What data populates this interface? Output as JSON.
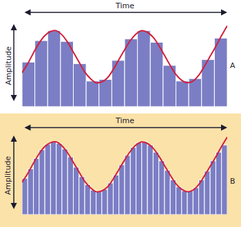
{
  "chart_data": [
    {
      "type": "bar",
      "title": "A",
      "x_label": "Time",
      "y_label": "Amplitude",
      "xlim": [
        0,
        36
      ],
      "ylim": [
        0,
        100
      ],
      "grid": false,
      "tick_labels": false,
      "series": [
        {
          "type": "bar",
          "color": "#7b7ec4",
          "x": [
            1.125,
            3.375,
            5.625,
            7.875,
            10.125,
            12.375,
            14.625,
            16.875,
            19.125,
            21.375,
            23.625,
            25.875,
            28.125,
            30.375,
            32.625,
            34.875
          ],
          "values": [
            54,
            80,
            92,
            79,
            52,
            31,
            33,
            56,
            82,
            92,
            78,
            50,
            31,
            34,
            57,
            83
          ]
        },
        {
          "type": "line",
          "color": "#d11f3a",
          "x": [
            0,
            1,
            2,
            3,
            4,
            5,
            6,
            7,
            8,
            9,
            10,
            11,
            12,
            13,
            14,
            15,
            16,
            17,
            18,
            19,
            20,
            21,
            22,
            23,
            24,
            25,
            26,
            27,
            28,
            29,
            30,
            31,
            32,
            33,
            34,
            35,
            36
          ],
          "values": [
            41,
            52,
            65,
            77,
            86,
            91,
            92,
            87,
            78,
            66,
            54,
            42,
            34,
            29,
            30,
            35,
            45,
            57,
            69,
            80,
            88,
            92,
            90,
            84,
            74,
            62,
            50,
            39,
            32,
            29,
            31,
            38,
            49,
            61,
            73,
            86,
            98
          ]
        }
      ]
    },
    {
      "type": "bar",
      "title": "B",
      "x_label": "Time",
      "y_label": "Amplitude",
      "xlim": [
        0,
        36
      ],
      "ylim": [
        0,
        100
      ],
      "grid": false,
      "tick_labels": false,
      "series": [
        {
          "type": "bar",
          "color": "#7b7ec4",
          "x": [
            0.5,
            1.5,
            2.5,
            3.5,
            4.5,
            5.5,
            6.5,
            7.5,
            8.5,
            9.5,
            10.5,
            11.5,
            12.5,
            13.5,
            14.5,
            15.5,
            16.5,
            17.5,
            18.5,
            19.5,
            20.5,
            21.5,
            22.5,
            23.5,
            24.5,
            25.5,
            26.5,
            27.5,
            28.5,
            29.5,
            30.5,
            31.5,
            32.5,
            33.5,
            34.5,
            35.5
          ],
          "values": [
            46,
            58,
            71,
            82,
            89,
            92,
            90,
            83,
            73,
            60,
            48,
            38,
            31,
            29,
            32,
            40,
            50,
            63,
            75,
            85,
            91,
            92,
            88,
            79,
            68,
            56,
            44,
            35,
            30,
            30,
            34,
            44,
            55,
            68,
            79,
            88
          ]
        },
        {
          "type": "line",
          "color": "#d11f3a",
          "x": [
            0,
            1,
            2,
            3,
            4,
            5,
            6,
            7,
            8,
            9,
            10,
            11,
            12,
            13,
            14,
            15,
            16,
            17,
            18,
            19,
            20,
            21,
            22,
            23,
            24,
            25,
            26,
            27,
            28,
            29,
            30,
            31,
            32,
            33,
            34,
            35,
            36
          ],
          "values": [
            41,
            52,
            65,
            77,
            86,
            91,
            92,
            87,
            78,
            66,
            54,
            42,
            34,
            29,
            30,
            35,
            45,
            57,
            69,
            80,
            88,
            92,
            90,
            84,
            74,
            62,
            50,
            39,
            32,
            29,
            31,
            38,
            49,
            61,
            73,
            86,
            98
          ]
        }
      ]
    }
  ]
}
